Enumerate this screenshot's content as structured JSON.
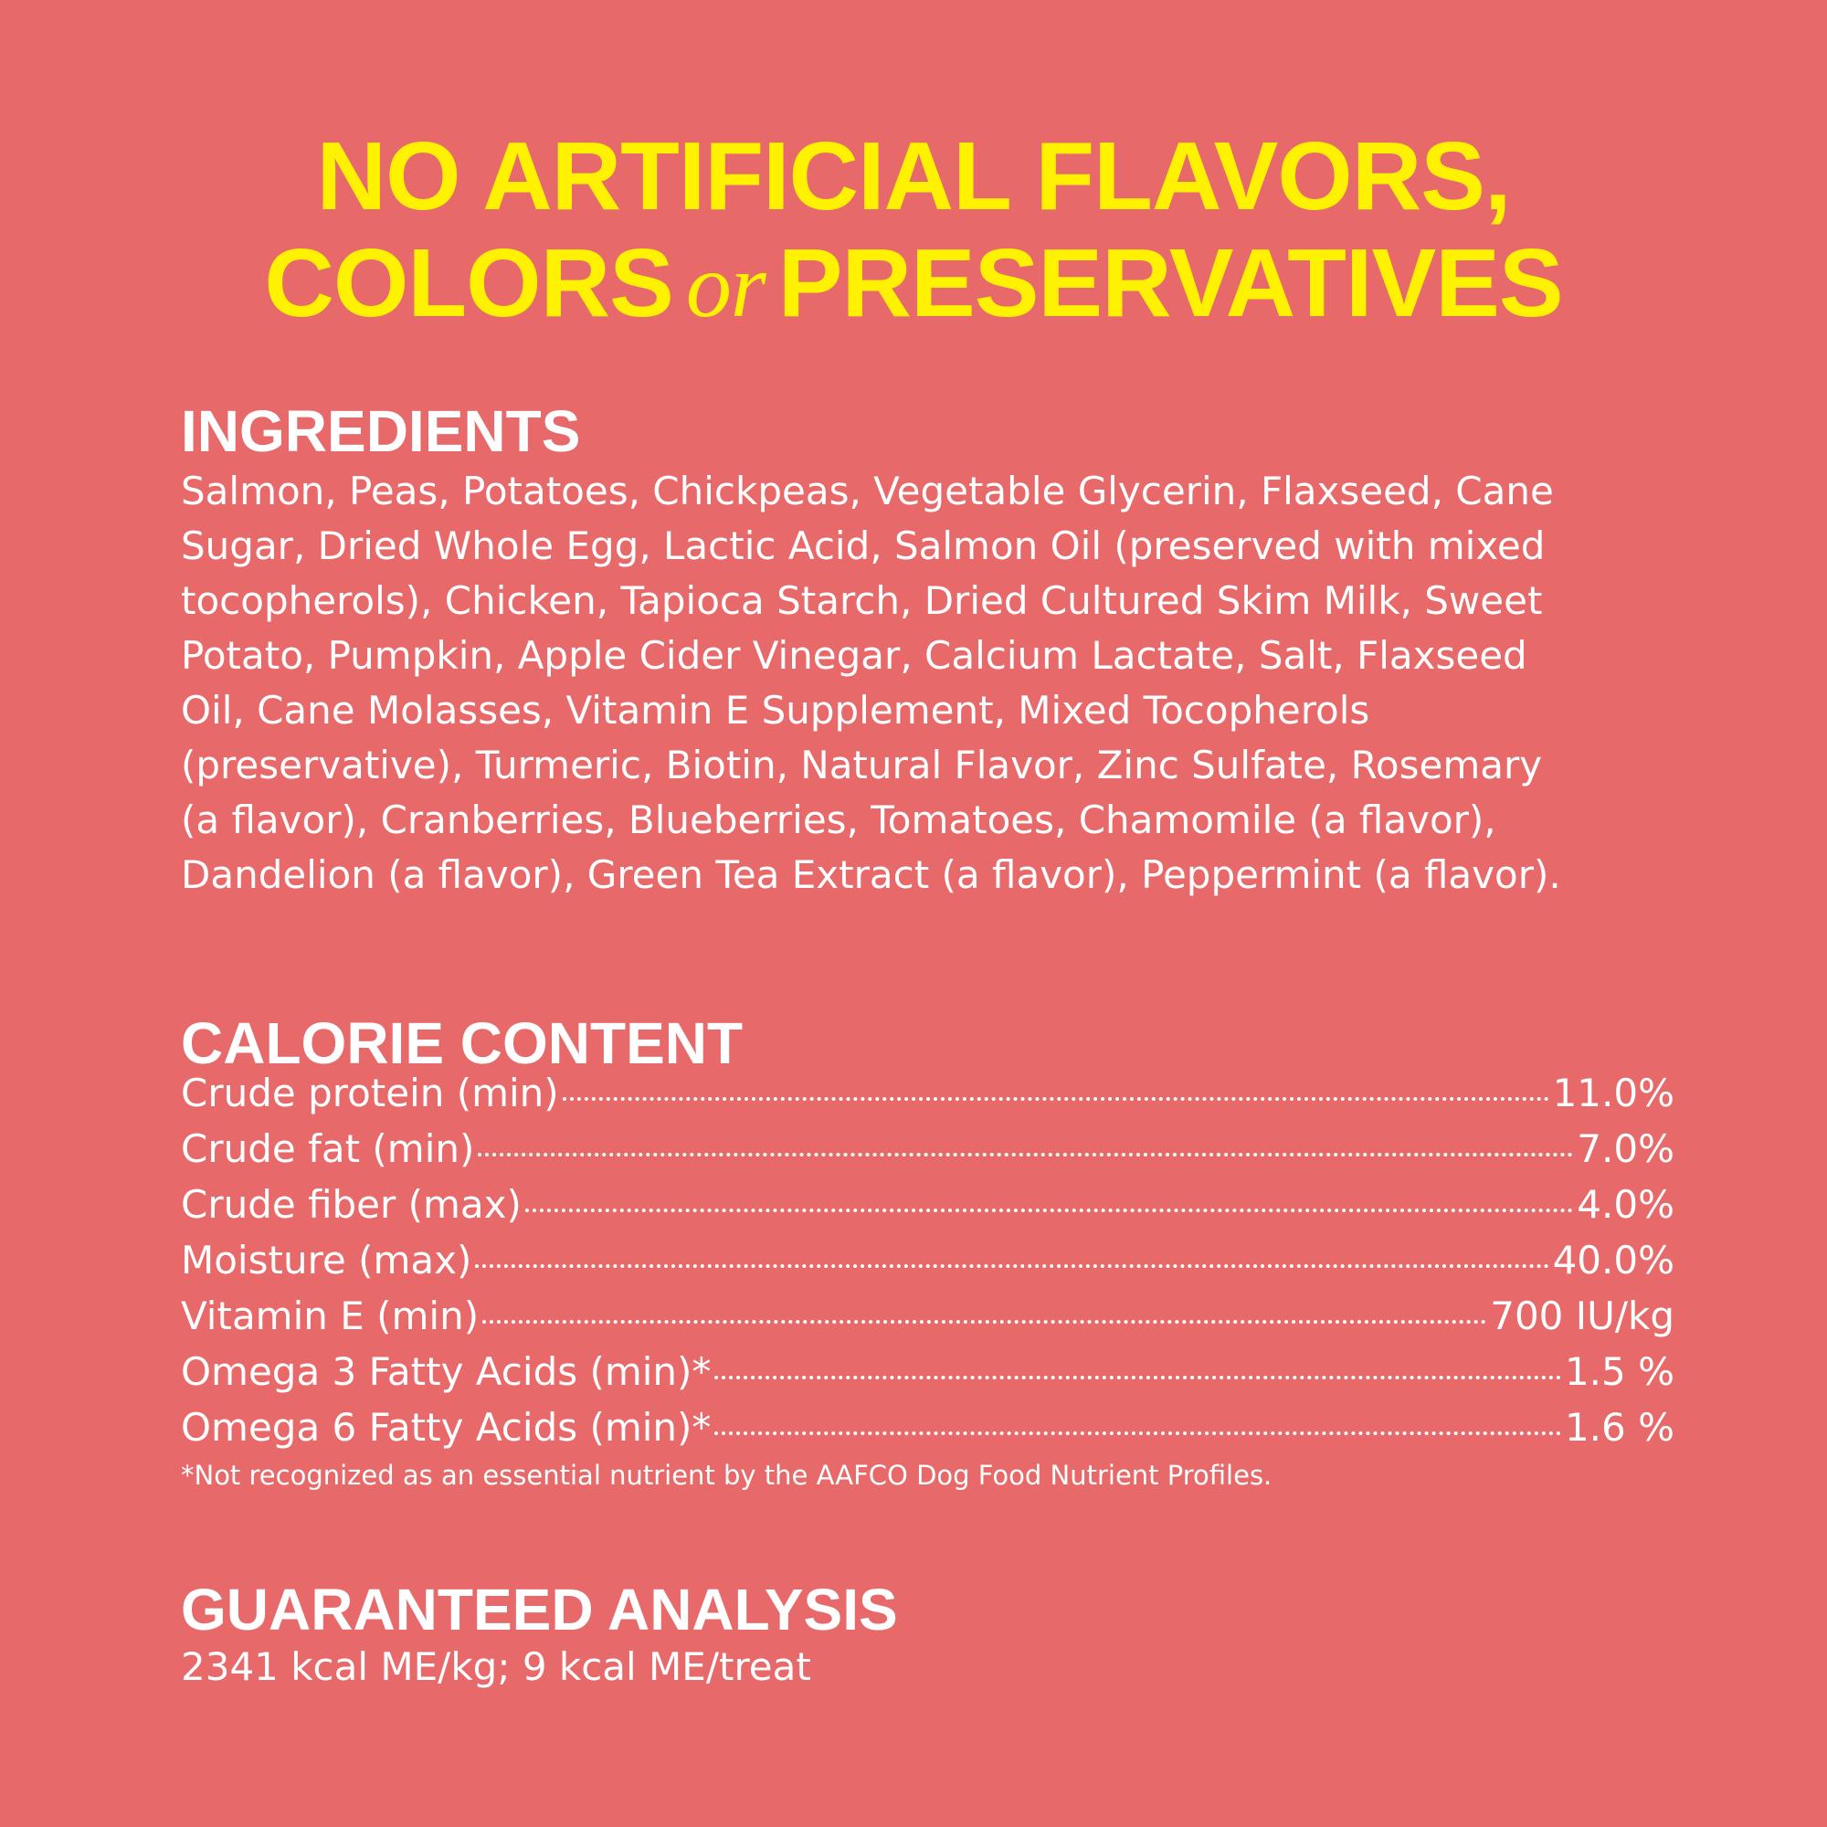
{
  "headline": {
    "line1": "NO ARTIFICIAL FLAVORS,",
    "line2_left": "COLORS",
    "line2_connector": "or",
    "line2_right": "PRESERVATIVES"
  },
  "ingredients": {
    "heading": "INGREDIENTS",
    "lines": [
      "Salmon, Peas, Potatoes, Chickpeas, Vegetable Glycerin, Flaxseed, Cane",
      "Sugar, Dried Whole Egg, Lactic Acid, Salmon Oil (preserved with mixed",
      "tocopherols), Chicken, Tapioca Starch, Dried Cultured Skim Milk, Sweet",
      "Potato, Pumpkin, Apple Cider Vinegar, Calcium Lactate, Salt, Flaxseed",
      "Oil, Cane Molasses, Vitamin E Supplement, Mixed Tocopherols",
      "(preservative), Turmeric, Biotin, Natural Flavor, Zinc Sulfate, Rosemary",
      "(a flavor), Cranberries, Blueberries, Tomatoes, Chamomile (a flavor),",
      "Dandelion (a flavor), Green Tea Extract (a flavor), Peppermint (a flavor)."
    ]
  },
  "calorie_content": {
    "heading": "CALORIE CONTENT",
    "rows": [
      [
        "Crude protein (min)",
        "11.0%"
      ],
      [
        "Crude fat (min)",
        "7.0%"
      ],
      [
        "Crude fiber (max)",
        "4.0%"
      ],
      [
        "Moisture (max)",
        "40.0%"
      ],
      [
        "Vitamin E (min)",
        "700 IU/kg"
      ],
      [
        "Omega 3 Fatty Acids (min)*",
        "1.5 %"
      ],
      [
        "Omega 6 Fatty Acids (min)*",
        "1.6 %"
      ]
    ],
    "footnote": "*Not recognized as an essential nutrient by the AAFCO Dog Food Nutrient Profiles."
  },
  "guaranteed_analysis": {
    "heading": "GUARANTEED ANALYSIS",
    "text": "2341 kcal ME/kg; 9 kcal ME/treat"
  }
}
